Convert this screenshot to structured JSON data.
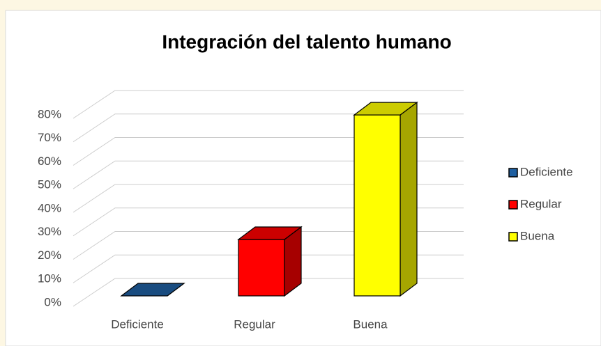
{
  "chart_data": {
    "type": "bar3d",
    "title": "Integración del talento humano",
    "categories": [
      "Deficiente",
      "Regular",
      "Buena"
    ],
    "values": [
      0,
      24,
      77
    ],
    "colors": [
      "#1f5fa0",
      "#ff0000",
      "#ffff00"
    ],
    "ylim": [
      0,
      80
    ],
    "yticks": [
      {
        "value": 0,
        "label": "0%"
      },
      {
        "value": 10,
        "label": "10%"
      },
      {
        "value": 20,
        "label": "20%"
      },
      {
        "value": 30,
        "label": "30%"
      },
      {
        "value": 40,
        "label": "40%"
      },
      {
        "value": 50,
        "label": "50%"
      },
      {
        "value": 60,
        "label": "60%"
      },
      {
        "value": 70,
        "label": "70%"
      },
      {
        "value": 80,
        "label": "80%"
      }
    ],
    "grid": true,
    "legend": "right"
  }
}
